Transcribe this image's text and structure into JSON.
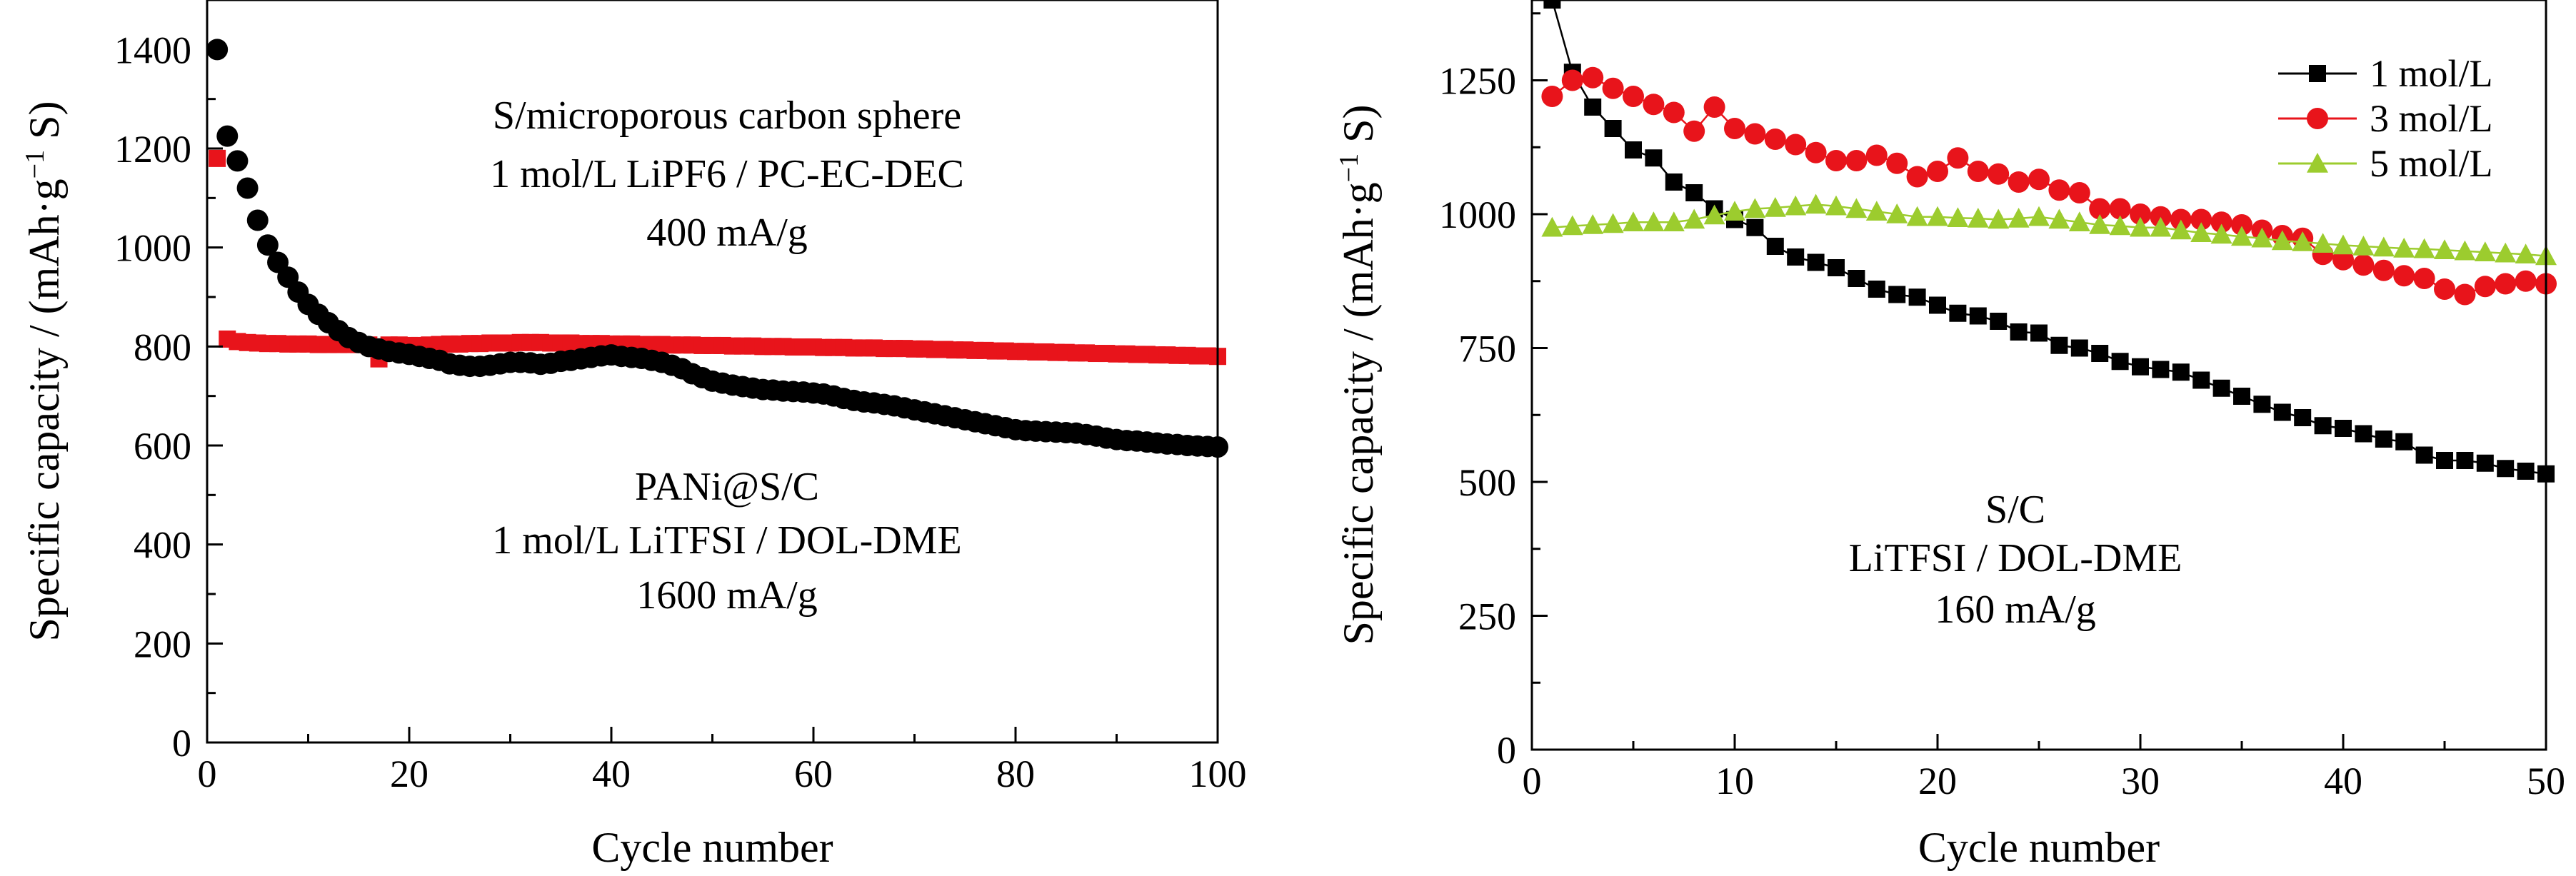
{
  "colors": {
    "black": "#000000",
    "red": "#e8141b",
    "green": "#9ccc2e"
  },
  "chart_data": [
    {
      "type": "scatter",
      "xlabel": "Cycle number",
      "ylabel_main": "Specific capacity / (mAh·g",
      "ylabel_sup": "−1",
      "ylabel_tail": " S)",
      "xlim": [
        0,
        100
      ],
      "ylim": [
        0,
        1500
      ],
      "xticks": [
        "0",
        "20",
        "40",
        "60",
        "80",
        "100"
      ],
      "yticks": [
        "0",
        "200",
        "400",
        "600",
        "800",
        "1000",
        "1200",
        "1400"
      ],
      "annotations": {
        "top": [
          "S/microporous carbon sphere",
          "1 mol/L LiPF6 / PC-EC-DEC",
          "400 mA/g"
        ],
        "bottom": [
          "PANi@S/C",
          "1 mol/L LiTFSI / DOL-DME",
          "1600 mA/g"
        ]
      },
      "series": [
        {
          "marker": "square",
          "color": "#e8141b",
          "x": [
            1,
            2,
            3,
            4,
            5,
            6,
            7,
            8,
            9,
            10,
            11,
            12,
            13,
            14,
            15,
            16,
            17,
            18,
            19,
            20,
            21,
            22,
            23,
            24,
            25,
            26,
            27,
            28,
            29,
            30,
            31,
            32,
            33,
            34,
            35,
            36,
            37,
            38,
            39,
            40,
            41,
            42,
            43,
            44,
            45,
            46,
            47,
            48,
            49,
            50,
            51,
            52,
            53,
            54,
            55,
            56,
            57,
            58,
            59,
            60,
            61,
            62,
            63,
            64,
            65,
            66,
            67,
            68,
            69,
            70,
            71,
            72,
            73,
            74,
            75,
            76,
            77,
            78,
            79,
            80,
            81,
            82,
            83,
            84,
            85,
            86,
            87,
            88,
            89,
            90,
            91,
            92,
            93,
            94,
            95,
            96,
            97,
            98,
            99,
            100
          ],
          "y": [
            1180,
            815,
            810,
            808,
            807,
            806,
            806,
            805,
            805,
            805,
            804,
            804,
            804,
            804,
            804,
            803,
            775,
            803,
            803,
            802,
            802,
            803,
            804,
            805,
            805,
            806,
            806,
            807,
            807,
            807,
            808,
            808,
            808,
            807,
            807,
            807,
            806,
            806,
            806,
            805,
            805,
            805,
            804,
            804,
            804,
            803,
            803,
            803,
            802,
            802,
            802,
            801,
            801,
            801,
            800,
            800,
            800,
            799,
            799,
            799,
            798,
            798,
            798,
            797,
            797,
            797,
            796,
            796,
            796,
            795,
            795,
            794,
            794,
            793,
            793,
            792,
            792,
            791,
            791,
            790,
            790,
            789,
            789,
            788,
            788,
            787,
            787,
            786,
            786,
            785,
            785,
            784,
            784,
            783,
            783,
            782,
            782,
            781,
            781,
            780
          ]
        },
        {
          "marker": "circle",
          "color": "#000000",
          "x": [
            1,
            2,
            3,
            4,
            5,
            6,
            7,
            8,
            9,
            10,
            11,
            12,
            13,
            14,
            15,
            16,
            17,
            18,
            19,
            20,
            21,
            22,
            23,
            24,
            25,
            26,
            27,
            28,
            29,
            30,
            31,
            32,
            33,
            34,
            35,
            36,
            37,
            38,
            39,
            40,
            41,
            42,
            43,
            44,
            45,
            46,
            47,
            48,
            49,
            50,
            51,
            52,
            53,
            54,
            55,
            56,
            57,
            58,
            59,
            60,
            61,
            62,
            63,
            64,
            65,
            66,
            67,
            68,
            69,
            70,
            71,
            72,
            73,
            74,
            75,
            76,
            77,
            78,
            79,
            80,
            81,
            82,
            83,
            84,
            85,
            86,
            87,
            88,
            89,
            90,
            91,
            92,
            93,
            94,
            95,
            96,
            97,
            98,
            99,
            100
          ],
          "y": [
            1400,
            1225,
            1175,
            1120,
            1055,
            1005,
            970,
            940,
            910,
            885,
            865,
            848,
            832,
            818,
            808,
            800,
            795,
            790,
            787,
            784,
            780,
            776,
            772,
            765,
            762,
            760,
            760,
            762,
            765,
            768,
            768,
            767,
            764,
            766,
            770,
            772,
            775,
            778,
            781,
            783,
            780,
            778,
            776,
            772,
            768,
            762,
            755,
            745,
            737,
            730,
            726,
            722,
            719,
            716,
            713,
            712,
            710,
            709,
            708,
            706,
            704,
            700,
            695,
            691,
            688,
            686,
            683,
            680,
            676,
            672,
            668,
            664,
            660,
            656,
            652,
            648,
            644,
            640,
            636,
            632,
            630,
            629,
            628,
            627,
            626,
            625,
            622,
            619,
            615,
            612,
            610,
            609,
            607,
            605,
            603,
            602,
            600,
            599,
            598,
            597
          ]
        }
      ]
    },
    {
      "type": "line",
      "xlabel": "Cycle number",
      "ylabel_main": "Specific capacity / (mAh·g",
      "ylabel_sup": "−1",
      "ylabel_tail": " S)",
      "xlim": [
        0,
        50
      ],
      "ylim": [
        0,
        1400
      ],
      "xticks": [
        "0",
        "10",
        "20",
        "30",
        "40",
        "50"
      ],
      "yticks": [
        "0",
        "250",
        "500",
        "750",
        "1000",
        "1250"
      ],
      "legend_position": "top-right",
      "annotations": {
        "middle": [
          "S/C",
          "LiTFSI / DOL-DME",
          "160 mA/g"
        ]
      },
      "series": [
        {
          "name": "1 mol/L",
          "marker": "square",
          "color": "#000000",
          "x": [
            1,
            2,
            3,
            4,
            5,
            6,
            7,
            8,
            9,
            10,
            11,
            12,
            13,
            14,
            15,
            16,
            17,
            18,
            19,
            20,
            21,
            22,
            23,
            24,
            25,
            26,
            27,
            28,
            29,
            30,
            31,
            32,
            33,
            34,
            35,
            36,
            37,
            38,
            39,
            40,
            41,
            42,
            43,
            44,
            45,
            46,
            47,
            48,
            49,
            50
          ],
          "y": [
            1400,
            1265,
            1200,
            1160,
            1120,
            1105,
            1060,
            1040,
            1010,
            990,
            975,
            940,
            920,
            910,
            900,
            880,
            860,
            850,
            845,
            830,
            815,
            810,
            800,
            780,
            778,
            755,
            750,
            740,
            725,
            715,
            710,
            705,
            690,
            675,
            660,
            645,
            630,
            620,
            605,
            600,
            590,
            580,
            575,
            550,
            540,
            540,
            535,
            525,
            520,
            515
          ]
        },
        {
          "name": "3 mol/L",
          "marker": "circle",
          "color": "#e8141b",
          "x": [
            1,
            2,
            3,
            4,
            5,
            6,
            7,
            8,
            9,
            10,
            11,
            12,
            13,
            14,
            15,
            16,
            17,
            18,
            19,
            20,
            21,
            22,
            23,
            24,
            25,
            26,
            27,
            28,
            29,
            30,
            31,
            32,
            33,
            34,
            35,
            36,
            37,
            38,
            39,
            40,
            41,
            42,
            43,
            44,
            45,
            46,
            47,
            48,
            49,
            50
          ],
          "y": [
            1220,
            1250,
            1255,
            1235,
            1220,
            1205,
            1190,
            1155,
            1200,
            1160,
            1150,
            1140,
            1130,
            1115,
            1100,
            1100,
            1110,
            1095,
            1070,
            1080,
            1105,
            1080,
            1075,
            1060,
            1065,
            1045,
            1040,
            1010,
            1010,
            1000,
            995,
            990,
            990,
            985,
            980,
            970,
            960,
            955,
            925,
            915,
            905,
            895,
            885,
            880,
            860,
            850,
            865,
            870,
            875,
            870
          ]
        },
        {
          "name": "5 mol/L",
          "marker": "triangle",
          "color": "#9ccc2e",
          "x": [
            1,
            2,
            3,
            4,
            5,
            6,
            7,
            8,
            9,
            10,
            11,
            12,
            13,
            14,
            15,
            16,
            17,
            18,
            19,
            20,
            21,
            22,
            23,
            24,
            25,
            26,
            27,
            28,
            29,
            30,
            31,
            32,
            33,
            34,
            35,
            36,
            37,
            38,
            39,
            40,
            41,
            42,
            43,
            44,
            45,
            46,
            47,
            48,
            49,
            50
          ],
          "y": [
            975,
            978,
            980,
            982,
            985,
            985,
            985,
            990,
            998,
            1005,
            1010,
            1012,
            1015,
            1018,
            1015,
            1010,
            1005,
            1000,
            995,
            995,
            993,
            992,
            990,
            992,
            995,
            990,
            985,
            980,
            978,
            975,
            975,
            970,
            965,
            962,
            958,
            955,
            950,
            948,
            945,
            942,
            940,
            938,
            936,
            935,
            933,
            931,
            929,
            927,
            925,
            922
          ]
        }
      ]
    }
  ]
}
